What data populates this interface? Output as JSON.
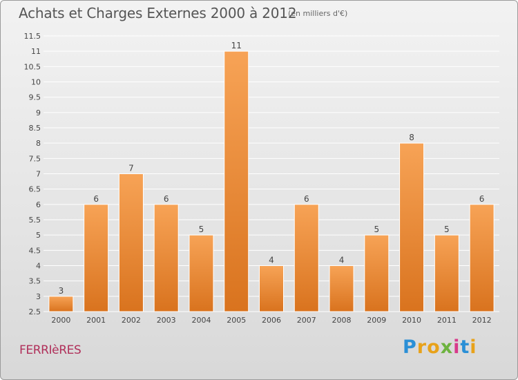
{
  "title": "Achats et Charges Externes 2000 à 2012",
  "subtitle": "(en milliers d'€)",
  "commune": "FERRIèRES",
  "logo": {
    "letters": [
      "P",
      "r",
      "o",
      "x",
      "i",
      "t",
      "i"
    ]
  },
  "colors": {
    "bar_top": "#f7a356",
    "bar_bottom": "#d9731e",
    "grid": "#ffffff",
    "axis_text": "#444444",
    "commune": "#b0305a"
  },
  "chart_data": {
    "type": "bar",
    "title": "Achats et Charges Externes 2000 à 2012",
    "subtitle": "(en milliers d'€)",
    "categories": [
      "2000",
      "2001",
      "2002",
      "2003",
      "2004",
      "2005",
      "2006",
      "2007",
      "2008",
      "2009",
      "2010",
      "2011",
      "2012"
    ],
    "values": [
      3,
      6,
      7,
      6,
      5,
      11,
      4,
      6,
      4,
      5,
      8,
      5,
      6
    ],
    "data_labels": [
      "3",
      "6",
      "7",
      "6",
      "5",
      "11",
      "4",
      "6",
      "4",
      "5",
      "8",
      "5",
      "6"
    ],
    "ylim": [
      2.5,
      11.5
    ],
    "yticks": [
      "2.5",
      "3",
      "3.5",
      "4",
      "4.5",
      "5",
      "5.5",
      "6",
      "6.5",
      "7",
      "7.5",
      "8",
      "8.5",
      "9",
      "9.5",
      "10",
      "10.5",
      "11",
      "11.5"
    ],
    "ytick_values": [
      2.5,
      3,
      3.5,
      4,
      4.5,
      5,
      5.5,
      6,
      6.5,
      7,
      7.5,
      8,
      8.5,
      9,
      9.5,
      10,
      10.5,
      11,
      11.5
    ],
    "grid": true,
    "xlabel": "",
    "ylabel": ""
  }
}
